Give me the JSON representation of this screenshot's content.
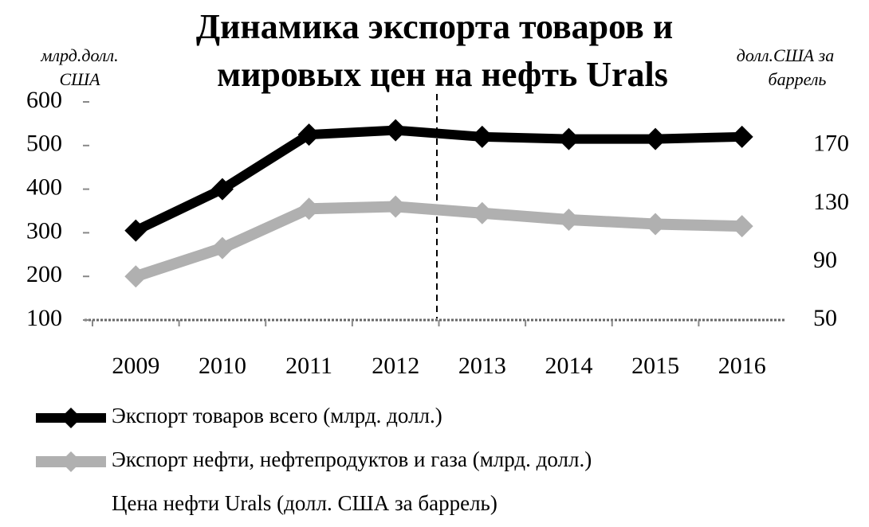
{
  "chart_data": {
    "type": "line",
    "title": [
      "Динамика экспорта товаров и",
      "мировых цен на нефть Urals"
    ],
    "y_label": [
      "млрд.долл.",
      "США"
    ],
    "y2_label": [
      "долл.США за",
      "баррель"
    ],
    "categories": [
      "2009",
      "2010",
      "2011",
      "2012",
      "2013",
      "2014",
      "2015",
      "2016"
    ],
    "series": [
      {
        "name": "Экспорт товаров всего (млрд. долл.)",
        "color": "#000000",
        "values": [
          305,
          400,
          525,
          535,
          520,
          515,
          515,
          520
        ]
      },
      {
        "name": "Экспорт нефти, нефтепродуктов и газа (млрд. долл.)",
        "color": "#b0b0b0",
        "values": [
          200,
          265,
          355,
          360,
          345,
          330,
          320,
          315
        ]
      },
      {
        "name": "Цена нефти Urals (долл. США за баррель)",
        "color": "#ffffff",
        "axis": "y2",
        "values": [
          null,
          null,
          null,
          null,
          null,
          null,
          null,
          null
        ]
      }
    ],
    "ylim": [
      100,
      600
    ],
    "yticks": [
      100,
      200,
      300,
      400,
      500,
      600
    ],
    "y2lim": [
      50,
      200
    ],
    "y2ticks": [
      50,
      90,
      130,
      170
    ],
    "grid": false
  }
}
